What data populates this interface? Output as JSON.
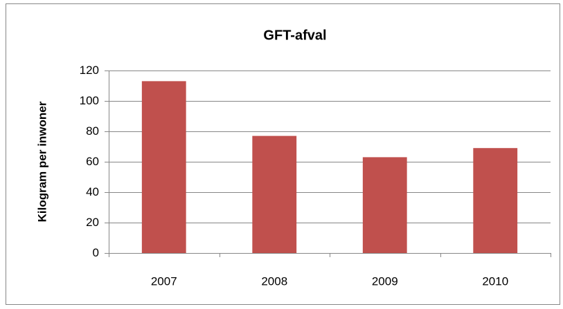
{
  "chart_data": {
    "type": "bar",
    "title": "GFT-afval",
    "y_label": "Kilogram per inwoner",
    "categories": [
      "2007",
      "2008",
      "2009",
      "2010"
    ],
    "values": [
      113,
      77,
      63,
      69
    ],
    "color": "#c0504d",
    "ylim": [
      0,
      120
    ],
    "yticks": [
      0,
      20,
      40,
      60,
      80,
      100,
      120
    ],
    "grid": true
  }
}
